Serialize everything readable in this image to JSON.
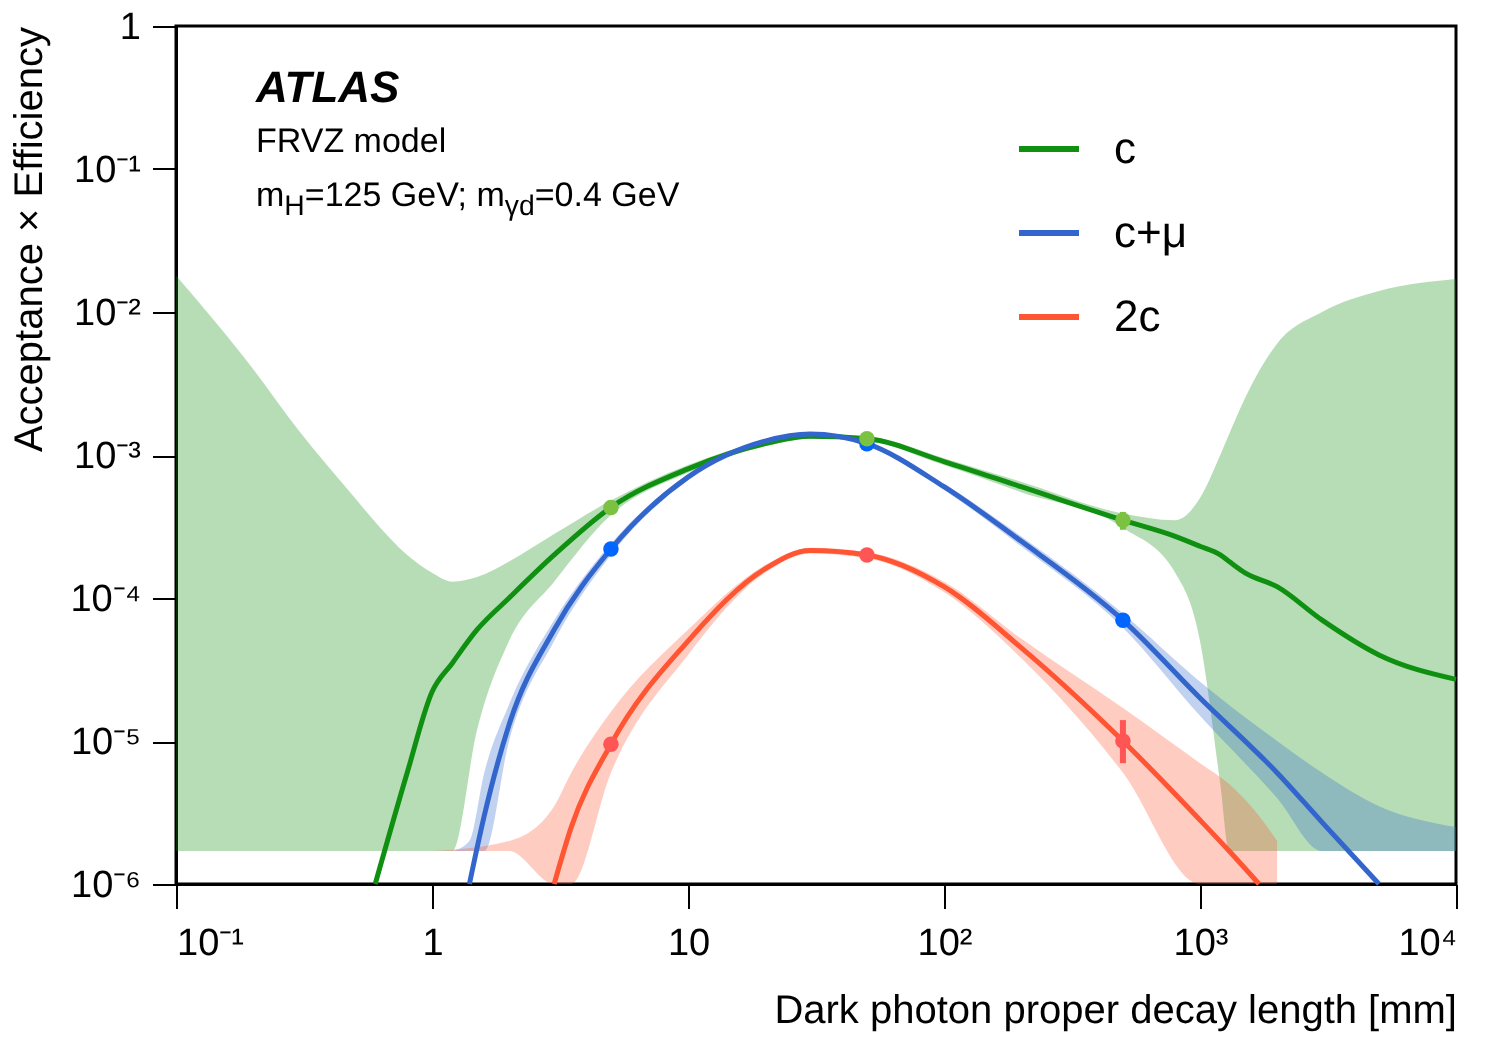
{
  "chart_data": {
    "type": "line",
    "xlabel": "Dark photon proper decay length [mm]",
    "ylabel": "Acceptance × Efficiency",
    "annotations": [
      "ATLAS",
      "FRVZ model",
      "m$_{H}$=125 GeV; m$_{γd}$=0.4 GeV"
    ],
    "log": "xy",
    "grid": false,
    "legend": "top right",
    "xlim": [
      0.1,
      10000
    ],
    "xticks": [
      {
        "value": 0.1,
        "label": "10⁻¹"
      },
      1,
      10,
      {
        "value": 100,
        "label": "10²"
      },
      {
        "value": 1000,
        "label": "10³"
      },
      {
        "value": 10000,
        "label": "10⁴"
      }
    ],
    "ylim": [
      1e-06,
      1
    ],
    "yticks": [
      {
        "value": 1e-06,
        "label": "10⁻⁶"
      },
      {
        "value": 1e-05,
        "label": "10⁻⁵"
      },
      {
        "value": 0.0001,
        "label": "10⁻⁴"
      },
      {
        "value": 0.001,
        "label": "10⁻³"
      },
      {
        "value": 0.01,
        "label": "10⁻²"
      },
      {
        "value": 0.1,
        "label": "10⁻¹"
      },
      1
    ],
    "series": [
      {
        "name": "c",
        "color": "#109010",
        "x": [
          0.1,
          0.2,
          0.3,
          0.5,
          0.6,
          0.8,
          1,
          1.2,
          1.5,
          2,
          3,
          5,
          10,
          20,
          30,
          50,
          100,
          200,
          500,
          800,
          1000,
          1200,
          1300,
          1500,
          2000,
          3000,
          5000,
          10000
        ],
        "values": [
          null,
          null,
          null,
          null,
          1e-06,
          6e-06,
          2.2e-05,
          3.5e-05,
          6e-05,
          0.0001,
          0.0002,
          0.00043,
          0.0008,
          0.0012,
          0.00135,
          0.0013,
          0.0009,
          0.0006,
          0.00035,
          0.00027,
          0.00023,
          0.0002,
          0.00018,
          0.00015,
          0.00012,
          7e-05,
          4e-05,
          2.7e-05
        ],
        "lower": [
          1.7e-06,
          1.7e-06,
          1.7e-06,
          1.7e-06,
          1.7e-06,
          1.7e-06,
          1.7e-06,
          1.7e-06,
          1.2e-05,
          5e-05,
          0.00013,
          0.00038,
          0.00075,
          0.00115,
          0.0013,
          0.00125,
          0.00085,
          0.00055,
          0.00031,
          0.00015,
          5e-05,
          5e-06,
          1.7e-06,
          1.7e-06,
          1.7e-06,
          1.7e-06,
          1.7e-06,
          1.7e-06
        ],
        "upper": [
          0.018,
          0.004,
          0.0015,
          0.0005,
          0.00034,
          0.0002,
          0.00015,
          0.00013,
          0.00014,
          0.00018,
          0.00028,
          0.00048,
          0.00085,
          0.00125,
          0.0014,
          0.00135,
          0.00095,
          0.00065,
          0.00039,
          0.00035,
          0.0005,
          0.001,
          0.0014,
          0.0025,
          0.006,
          0.01,
          0.014,
          0.017
        ]
      },
      {
        "name": "c+μ",
        "color": "#3366cc",
        "x": [
          1.2,
          1.4,
          1.6,
          2,
          3,
          5,
          10,
          20,
          30,
          50,
          100,
          200,
          500,
          1000,
          2000,
          3000,
          5000,
          10000
        ],
        "values": [
          null,
          1e-06,
          3e-06,
          1.3e-05,
          6e-05,
          0.00022,
          0.0007,
          0.00125,
          0.0014,
          0.0012,
          0.0006,
          0.00025,
          7e-05,
          2e-05,
          6e-06,
          2.7e-06,
          1e-06,
          null
        ],
        "lower": [
          1.7e-06,
          1.7e-06,
          1.7e-06,
          1e-05,
          5e-05,
          0.0002,
          0.00067,
          0.00122,
          0.00137,
          0.00117,
          0.00057,
          0.00023,
          6.2e-05,
          1.5e-05,
          4e-06,
          1.7e-06,
          1.7e-06,
          1.7e-06
        ],
        "upper": [
          1.7e-06,
          2e-06,
          6e-06,
          1.8e-05,
          7e-05,
          0.00024,
          0.00073,
          0.00128,
          0.00143,
          0.00123,
          0.00063,
          0.00027,
          7.8e-05,
          2.6e-05,
          1e-05,
          6e-06,
          3.5e-06,
          2.5e-06
        ]
      },
      {
        "name": "2c",
        "color": "#ff5533",
        "x": [
          1,
          2,
          3,
          3.5,
          5,
          10,
          20,
          30,
          50,
          100,
          200,
          500,
          1000,
          1300,
          1700,
          2000
        ],
        "values": [
          null,
          null,
          1e-06,
          2.5e-06,
          9.5e-06,
          5e-05,
          0.00016,
          0.000215,
          0.0002,
          0.00012,
          4.5e-05,
          1e-05,
          2.8e-06,
          1.7e-06,
          1e-06,
          null
        ],
        "lower": [
          1.7e-06,
          1.7e-06,
          1e-06,
          1e-06,
          6e-06,
          4e-05,
          0.00015,
          0.000205,
          0.00019,
          0.00011,
          3.8e-05,
          6e-06,
          1e-06,
          1e-06,
          1e-06,
          1e-06
        ],
        "upper": [
          1.7e-06,
          2e-06,
          3.5e-06,
          6e-06,
          1.6e-05,
          6e-05,
          0.00017,
          0.000225,
          0.00021,
          0.00013,
          5.2e-05,
          1.7e-05,
          7e-06,
          5e-06,
          3e-06,
          2e-06
        ]
      },
      {
        "type": "scatter",
        "color": "#7cc242",
        "x": [
          5,
          50,
          500
        ],
        "values": [
          0.00043,
          0.0013,
          0.00035
        ],
        "errors": [
          null,
          null,
          [
            0.0003,
            0.0004
          ]
        ]
      },
      {
        "type": "scatter",
        "color": "#0066ff",
        "x": [
          5,
          50,
          500
        ],
        "values": [
          0.00022,
          0.0012,
          7e-05
        ]
      },
      {
        "type": "scatter",
        "color": "#ff5555",
        "x": [
          5,
          50,
          500
        ],
        "values": [
          9.5e-06,
          0.0002,
          1e-05
        ],
        "errors": [
          null,
          null,
          [
            7e-06,
            1.4e-05
          ]
        ]
      }
    ]
  }
}
